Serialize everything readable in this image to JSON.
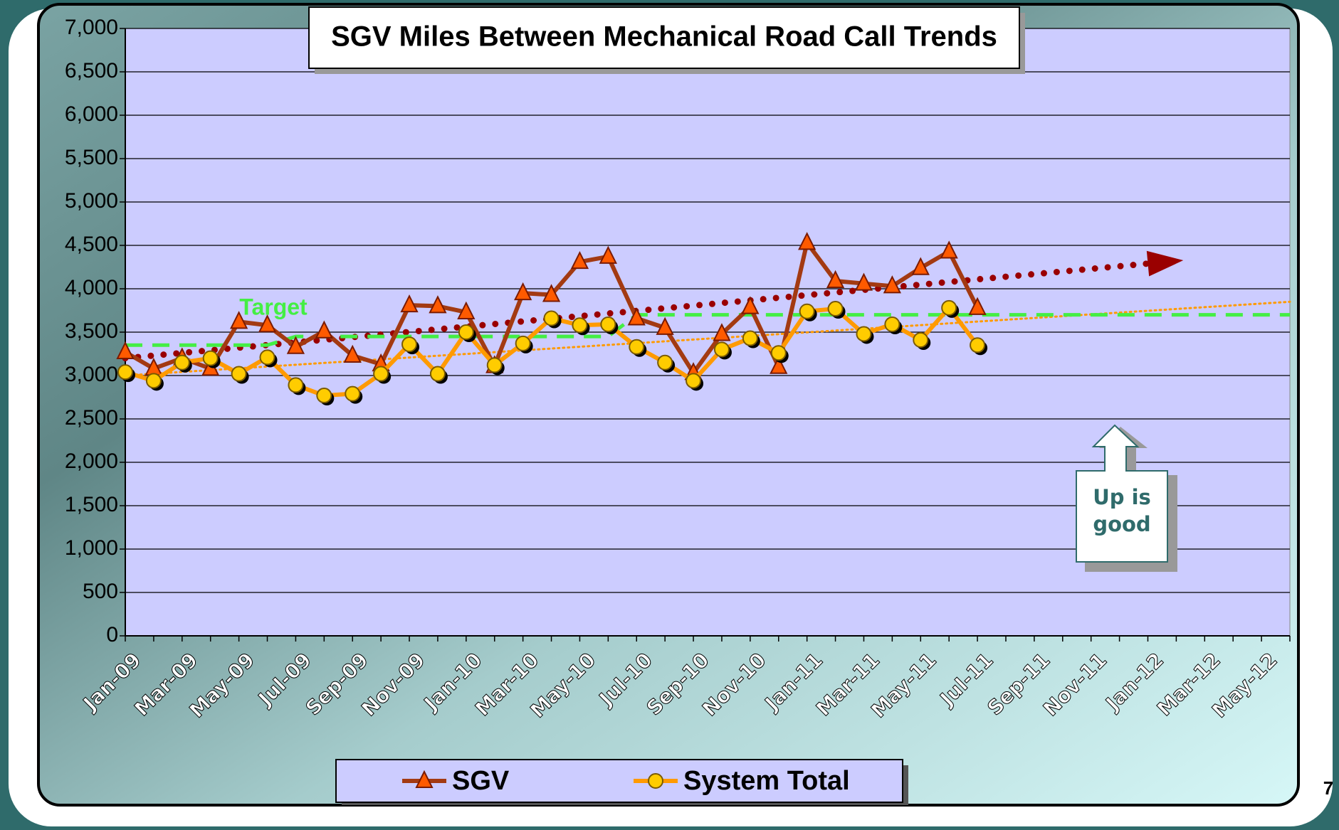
{
  "chart_data": {
    "type": "line",
    "title": "SGV Miles Between Mechanical Road Call Trends",
    "categories": [
      "Jan-09",
      null,
      "Mar-09",
      null,
      "May-09",
      null,
      "Jul-09",
      null,
      "Sep-09",
      null,
      "Nov-09",
      null,
      "Jan-10",
      null,
      "Mar-10",
      null,
      "May-10",
      null,
      "Jul-10",
      null,
      "Sep-10",
      null,
      "Nov-10",
      null,
      "Jan-11",
      null,
      "Mar-11",
      null,
      "May-11",
      null,
      "Jul-11",
      null,
      "Sep-11",
      null,
      "Nov-11",
      null,
      "Jan-12",
      null,
      "Mar-12",
      null,
      "May-12",
      null
    ],
    "series": [
      {
        "name": "SGV",
        "color": "#a33a12",
        "marker": "triangle",
        "marker_color": "#ff5a00",
        "values": [
          3270,
          3080,
          3200,
          3080,
          3620,
          3580,
          3330,
          3510,
          3230,
          3130,
          3810,
          3800,
          3730,
          3110,
          3950,
          3930,
          4310,
          4370,
          3660,
          3550,
          3030,
          3480,
          3790,
          3100,
          4530,
          4090,
          4060,
          4030,
          4240,
          4430,
          3780,
          null,
          null,
          null,
          null,
          null,
          null,
          null,
          null,
          null,
          null,
          null
        ]
      },
      {
        "name": "System Total",
        "color": "#ff9a00",
        "marker": "circle",
        "marker_color": "#ffcc00",
        "values": [
          3040,
          2940,
          3150,
          3200,
          3020,
          3210,
          2890,
          2770,
          2790,
          3020,
          3360,
          3020,
          3500,
          3120,
          3370,
          3660,
          3580,
          3590,
          3330,
          3150,
          2940,
          3300,
          3430,
          3260,
          3740,
          3770,
          3480,
          3590,
          3410,
          3780,
          3350,
          null,
          null,
          null,
          null,
          null,
          null,
          null,
          null,
          null,
          null,
          null
        ]
      }
    ],
    "target": {
      "label": "Target",
      "color": "#44ee44",
      "values": [
        3350,
        3350,
        3350,
        3350,
        3350,
        3350,
        3450,
        3450,
        3450,
        3450,
        3450,
        3450,
        3450,
        3450,
        3450,
        3450,
        3450,
        3450,
        3700,
        3700,
        3700,
        3700,
        3700,
        3700,
        3700,
        3700,
        3700,
        3700,
        3700,
        3700,
        3700,
        3700,
        3700,
        3700,
        3700,
        3700,
        3700,
        3700,
        3700,
        3700,
        3700,
        3700
      ]
    },
    "trendlines": [
      {
        "color": "#9a0000",
        "x": [
          0,
          36
        ],
        "values": [
          3200,
          4290
        ],
        "arrow": true
      },
      {
        "color": "#ff9a00",
        "x": [
          0,
          41
        ],
        "values": [
          3000,
          3850
        ],
        "arrow": false
      }
    ],
    "ylim": [
      0,
      7000
    ],
    "yticks": [
      0,
      500,
      {
        "value": 1000,
        "label": "1,000"
      },
      {
        "value": 1500,
        "label": "1,500"
      },
      {
        "value": 2000,
        "label": "2,000"
      },
      {
        "value": 2500,
        "label": "2,500"
      },
      {
        "value": 3000,
        "label": "3,000"
      },
      {
        "value": 3500,
        "label": "3,500"
      },
      {
        "value": 4000,
        "label": "4,000"
      },
      {
        "value": 4500,
        "label": "4,500"
      },
      {
        "value": 5000,
        "label": "5,000"
      },
      {
        "value": 5500,
        "label": "5,500"
      },
      {
        "value": 6000,
        "label": "6,000"
      },
      {
        "value": 6500,
        "label": "6,500"
      },
      {
        "value": 7000,
        "label": "7,000"
      }
    ],
    "grid": true,
    "annotation": "Up is good",
    "page_number": "7"
  }
}
